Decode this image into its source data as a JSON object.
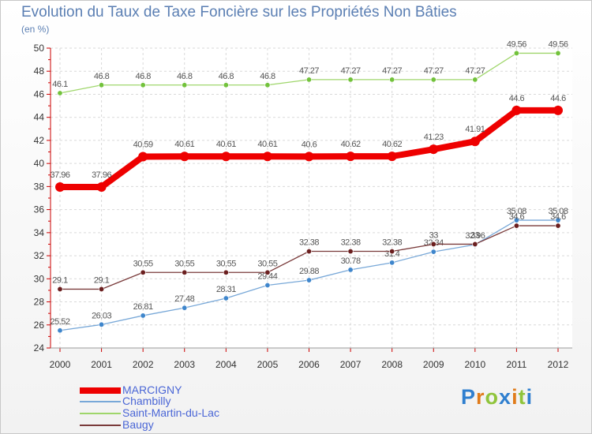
{
  "title": "Evolution du Taux de Taxe Foncière sur les Propriétés Non Bâties",
  "unit_label": "(en %)",
  "logo_letters": [
    {
      "ch": "P",
      "color": "#2f7fcf"
    },
    {
      "ch": "r",
      "color": "#e07b1a"
    },
    {
      "ch": "o",
      "color": "#8fc43b"
    },
    {
      "ch": "x",
      "color": "#2f7fcf"
    },
    {
      "ch": "i",
      "color": "#e07b1a"
    },
    {
      "ch": "t",
      "color": "#8fc43b"
    },
    {
      "ch": "i",
      "color": "#2f7fcf"
    }
  ],
  "chart_data": {
    "type": "line",
    "title": "Evolution du Taux de Taxe Foncière sur les Propriétés Non Bâties",
    "ylabel": "(en %)",
    "xlabel": "",
    "categories": [
      "2000",
      "2001",
      "2002",
      "2003",
      "2004",
      "2005",
      "2006",
      "2007",
      "2008",
      "2009",
      "2010",
      "2011",
      "2012"
    ],
    "ylim": [
      24,
      50
    ],
    "yticks": [
      24,
      26,
      28,
      30,
      32,
      34,
      36,
      38,
      40,
      42,
      44,
      46,
      48,
      50
    ],
    "grid": true,
    "legend_position": "bottom-left",
    "series": [
      {
        "name": "MARCIGNY",
        "color": "#ee0000",
        "values": [
          37.96,
          37.96,
          40.59,
          40.61,
          40.61,
          40.61,
          40.6,
          40.62,
          40.62,
          41.23,
          41.91,
          44.6,
          44.6
        ],
        "labels": [
          "37.96",
          "37.96",
          "40.59",
          "40.61",
          "40.61",
          "40.61",
          "40.6",
          "40.62",
          "40.62",
          "41.23",
          "41.91",
          "44.6",
          "44.6"
        ]
      },
      {
        "name": "Chambilly",
        "color": "#78a8d8",
        "values": [
          25.52,
          26.03,
          26.81,
          27.48,
          28.31,
          29.44,
          29.88,
          30.78,
          31.4,
          32.34,
          32.96,
          35.08,
          35.08
        ],
        "labels": [
          "25.52",
          "26.03",
          "26.81",
          "27.48",
          "28.31",
          "29.44",
          "29.88",
          "30.78",
          "31.4",
          "32.34",
          "32.96",
          "35.08",
          "35.08"
        ]
      },
      {
        "name": "Saint-Martin-du-Lac",
        "color": "#9fd66b",
        "values": [
          46.1,
          46.8,
          46.8,
          46.8,
          46.8,
          46.8,
          47.27,
          47.27,
          47.27,
          47.27,
          47.27,
          49.56,
          49.56
        ],
        "labels": [
          "46.1",
          "46.8",
          "46.8",
          "46.8",
          "46.8",
          "46.8",
          "47.27",
          "47.27",
          "47.27",
          "47.27",
          "47.27",
          "49.56",
          "49.56"
        ]
      },
      {
        "name": "Baugy",
        "color": "#7a3b3b",
        "values": [
          29.1,
          29.1,
          30.55,
          30.55,
          30.55,
          30.55,
          32.38,
          32.38,
          32.38,
          33,
          33,
          34.6,
          34.6
        ],
        "labels": [
          "29.1",
          "29.1",
          "30.55",
          "30.55",
          "30.55",
          "30.55",
          "32.38",
          "32.38",
          "32.38",
          "33",
          "33",
          "34.6",
          "34.6"
        ]
      }
    ]
  }
}
